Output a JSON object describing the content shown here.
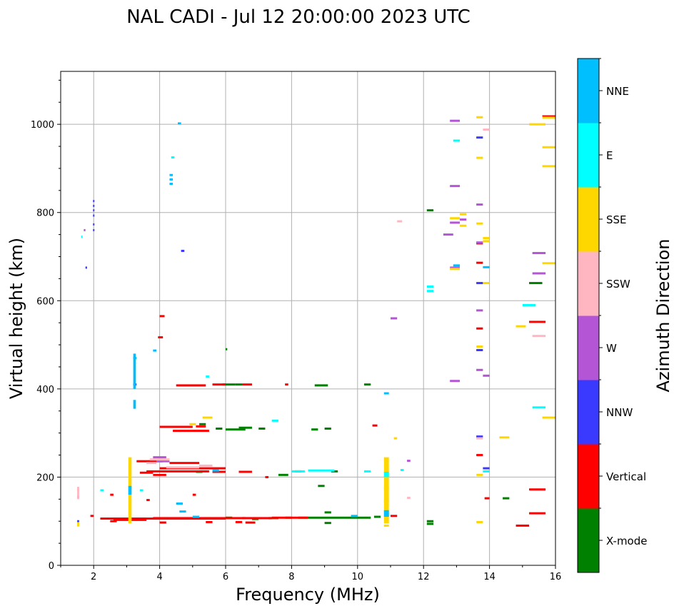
{
  "chart_data": {
    "type": "scatter",
    "title": "NAL CADI - Jul 12 20:00:00 2023 UTC",
    "xlabel": "Frequency (MHz)",
    "ylabel": "Virtual height (km)",
    "xlim": [
      1,
      16
    ],
    "ylim": [
      0,
      1120
    ],
    "xticks": [
      2,
      4,
      6,
      8,
      10,
      12,
      14,
      16
    ],
    "xtick_labels": [
      "2",
      "4",
      "6",
      "8",
      "10",
      "12",
      "14",
      "16"
    ],
    "yticks": [
      0,
      200,
      400,
      600,
      800,
      1000
    ],
    "ytick_labels": [
      "0",
      "200",
      "400",
      "600",
      "800",
      "1000"
    ],
    "grid": true,
    "colorbar": {
      "label": "Azimuth Direction",
      "categories": [
        {
          "name": "X-mode",
          "color": "#008000"
        },
        {
          "name": "Vertical",
          "color": "#ff0000"
        },
        {
          "name": "NNW",
          "color": "#3a3aff"
        },
        {
          "name": "W",
          "color": "#b455d6"
        },
        {
          "name": "SSW",
          "color": "#ffb6c1"
        },
        {
          "name": "SSE",
          "color": "#ffd700"
        },
        {
          "name": "E",
          "color": "#00ffff"
        },
        {
          "name": "NNE",
          "color": "#00bfff"
        }
      ]
    },
    "series": [
      {
        "name": "X-mode",
        "segments": [
          [
            6.0,
            6.2,
            108
          ],
          [
            6.8,
            7.0,
            105
          ],
          [
            7.3,
            7.6,
            107
          ],
          [
            7.8,
            8.0,
            108
          ],
          [
            8.2,
            10.4,
            108
          ],
          [
            10.5,
            10.7,
            110
          ],
          [
            9.0,
            9.2,
            96
          ],
          [
            9.0,
            9.2,
            120
          ],
          [
            8.8,
            9.0,
            180
          ],
          [
            8.7,
            8.9,
            408
          ],
          [
            8.9,
            9.1,
            408
          ],
          [
            9.0,
            9.2,
            310
          ],
          [
            8.6,
            8.8,
            308
          ],
          [
            7.6,
            7.9,
            205
          ],
          [
            8.1,
            8.3,
            213
          ],
          [
            9.2,
            9.4,
            213
          ],
          [
            5.7,
            5.9,
            310
          ],
          [
            6.0,
            6.6,
            308
          ],
          [
            6.4,
            6.8,
            312
          ],
          [
            7.0,
            7.2,
            310
          ],
          [
            5.2,
            5.4,
            320
          ],
          [
            5.9,
            6.3,
            410
          ],
          [
            6.3,
            6.5,
            410
          ],
          [
            10.2,
            10.4,
            410
          ],
          [
            12.1,
            12.3,
            805
          ],
          [
            12.1,
            12.3,
            100
          ],
          [
            12.1,
            12.3,
            94
          ],
          [
            14.4,
            14.6,
            152
          ],
          [
            15.2,
            15.6,
            640
          ],
          [
            6.0,
            6.05,
            490
          ],
          [
            5.1,
            5.3,
            212
          ]
        ]
      },
      {
        "name": "Vertical",
        "segments": [
          [
            1.9,
            2.0,
            112
          ],
          [
            2.2,
            6.0,
            106
          ],
          [
            2.6,
            3.6,
            103
          ],
          [
            3.8,
            6.6,
            107
          ],
          [
            6.5,
            7.4,
            107
          ],
          [
            7.4,
            7.8,
            108
          ],
          [
            7.8,
            8.5,
            108
          ],
          [
            2.5,
            2.7,
            100
          ],
          [
            4.0,
            4.2,
            97
          ],
          [
            5.4,
            5.6,
            98
          ],
          [
            6.3,
            6.5,
            98
          ],
          [
            6.6,
            6.9,
            97
          ],
          [
            3.4,
            3.8,
            210
          ],
          [
            3.6,
            5.5,
            213
          ],
          [
            4.0,
            6.0,
            220
          ],
          [
            4.3,
            5.2,
            232
          ],
          [
            5.6,
            6.0,
            212
          ],
          [
            6.4,
            6.8,
            212
          ],
          [
            3.3,
            4.1,
            236
          ],
          [
            3.8,
            4.2,
            205
          ],
          [
            4.0,
            5.0,
            314
          ],
          [
            4.4,
            5.5,
            305
          ],
          [
            5.1,
            5.4,
            315
          ],
          [
            4.5,
            5.4,
            408
          ],
          [
            5.6,
            6.0,
            410
          ],
          [
            6.5,
            6.8,
            410
          ],
          [
            7.8,
            7.9,
            410
          ],
          [
            4.0,
            4.15,
            565
          ],
          [
            3.95,
            4.1,
            517
          ],
          [
            10.45,
            10.6,
            317
          ],
          [
            13.6,
            13.8,
            730
          ],
          [
            13.6,
            13.8,
            686
          ],
          [
            13.6,
            13.8,
            537
          ],
          [
            13.6,
            13.8,
            250
          ],
          [
            13.85,
            14.0,
            152
          ],
          [
            15.2,
            15.7,
            552
          ],
          [
            15.2,
            15.7,
            172
          ],
          [
            15.2,
            15.7,
            118
          ],
          [
            14.8,
            15.2,
            90
          ],
          [
            15.6,
            16.0,
            1018
          ],
          [
            11.0,
            11.2,
            112
          ],
          [
            7.2,
            7.3,
            200
          ],
          [
            5.0,
            5.1,
            160
          ],
          [
            3.6,
            3.7,
            148
          ],
          [
            2.5,
            2.6,
            160
          ]
        ]
      },
      {
        "name": "NNW",
        "segments": [
          [
            1.98,
            2.02,
            826
          ],
          [
            1.98,
            2.02,
            815
          ],
          [
            1.98,
            2.02,
            805
          ],
          [
            1.98,
            2.02,
            793
          ],
          [
            1.98,
            2.02,
            773
          ],
          [
            1.98,
            2.02,
            760
          ],
          [
            1.75,
            1.8,
            675
          ],
          [
            4.65,
            4.75,
            713
          ],
          [
            13.6,
            13.8,
            970
          ],
          [
            13.6,
            13.8,
            640
          ],
          [
            13.6,
            13.8,
            488
          ],
          [
            13.6,
            13.8,
            292
          ],
          [
            13.8,
            14.0,
            220
          ],
          [
            1.5,
            1.56,
            100
          ],
          [
            3.2,
            3.3,
            410
          ]
        ]
      },
      {
        "name": "W",
        "segments": [
          [
            1.7,
            1.75,
            760
          ],
          [
            12.8,
            13.1,
            1008
          ],
          [
            12.8,
            13.1,
            860
          ],
          [
            12.6,
            12.9,
            750
          ],
          [
            12.8,
            13.1,
            777
          ],
          [
            13.1,
            13.3,
            784
          ],
          [
            12.8,
            13.1,
            675
          ],
          [
            11.0,
            11.2,
            560
          ],
          [
            13.6,
            13.8,
            818
          ],
          [
            13.6,
            13.8,
            732
          ],
          [
            13.6,
            13.8,
            578
          ],
          [
            13.6,
            13.8,
            443
          ],
          [
            13.8,
            14.0,
            430
          ],
          [
            12.8,
            13.1,
            418
          ],
          [
            15.3,
            15.7,
            708
          ],
          [
            15.3,
            15.7,
            662
          ],
          [
            11.5,
            11.6,
            237
          ],
          [
            3.8,
            4.2,
            245
          ],
          [
            3.9,
            4.3,
            236
          ],
          [
            1.5,
            1.56,
            155
          ]
        ]
      },
      {
        "name": "SSW",
        "segments": [
          [
            11.2,
            11.35,
            780
          ],
          [
            13.8,
            14.0,
            988
          ],
          [
            15.3,
            15.7,
            520
          ],
          [
            13.6,
            13.8,
            288
          ],
          [
            11.5,
            11.6,
            153
          ],
          [
            3.7,
            4.3,
            240
          ],
          [
            4.2,
            5.2,
            222
          ],
          [
            3.6,
            3.9,
            232
          ],
          [
            5.2,
            5.6,
            226
          ],
          [
            1.5,
            1.56,
            172
          ],
          [
            10.8,
            10.95,
            200
          ],
          [
            10.8,
            10.95,
            145
          ]
        ]
      },
      {
        "name": "SSE",
        "segments": [
          [
            12.8,
            13.1,
            787
          ],
          [
            13.1,
            13.3,
            796
          ],
          [
            13.1,
            13.3,
            770
          ],
          [
            12.8,
            13.1,
            672
          ],
          [
            13.6,
            13.8,
            1016
          ],
          [
            13.6,
            13.8,
            924
          ],
          [
            13.6,
            13.8,
            775
          ],
          [
            13.8,
            14.0,
            742
          ],
          [
            13.8,
            14.0,
            735
          ],
          [
            13.8,
            14.0,
            640
          ],
          [
            13.6,
            13.8,
            496
          ],
          [
            13.6,
            13.8,
            205
          ],
          [
            13.6,
            13.8,
            98
          ],
          [
            14.3,
            14.6,
            290
          ],
          [
            14.8,
            15.1,
            542
          ],
          [
            15.2,
            15.7,
            1000
          ],
          [
            15.6,
            16.0,
            1015
          ],
          [
            15.6,
            16.0,
            948
          ],
          [
            15.6,
            16.0,
            905
          ],
          [
            15.6,
            16.0,
            685
          ],
          [
            15.6,
            16.0,
            335
          ],
          [
            11.1,
            11.2,
            288
          ],
          [
            10.8,
            10.95,
            90
          ],
          [
            10.8,
            10.95,
            175
          ],
          [
            4.9,
            5.1,
            320
          ],
          [
            5.3,
            5.6,
            335
          ]
        ]
      },
      {
        "name": "E",
        "segments": [
          [
            1.62,
            1.66,
            745
          ],
          [
            4.35,
            4.45,
            925
          ],
          [
            12.9,
            13.1,
            963
          ],
          [
            15.0,
            15.4,
            590
          ],
          [
            15.3,
            15.7,
            358
          ],
          [
            13.8,
            14.0,
            213
          ],
          [
            11.3,
            11.4,
            216
          ],
          [
            10.2,
            10.4,
            213
          ],
          [
            12.1,
            12.3,
            632
          ],
          [
            12.1,
            12.3,
            622
          ],
          [
            5.4,
            5.5,
            428
          ],
          [
            2.2,
            2.3,
            170
          ],
          [
            3.4,
            3.5,
            170
          ],
          [
            7.4,
            7.6,
            328
          ],
          [
            8.5,
            9.3,
            215
          ],
          [
            8.0,
            8.4,
            213
          ]
        ]
      },
      {
        "name": "NNE",
        "segments": [
          [
            4.55,
            4.65,
            1002
          ],
          [
            4.3,
            4.4,
            885
          ],
          [
            4.3,
            4.4,
            875
          ],
          [
            4.3,
            4.4,
            865
          ],
          [
            3.8,
            3.9,
            487
          ],
          [
            12.9,
            13.1,
            680
          ],
          [
            13.8,
            14.0,
            676
          ],
          [
            10.8,
            10.95,
            390
          ],
          [
            9.8,
            10.0,
            112
          ],
          [
            4.5,
            4.7,
            140
          ],
          [
            5.0,
            5.2,
            110
          ],
          [
            5.6,
            5.8,
            215
          ],
          [
            4.6,
            4.8,
            122
          ],
          [
            3.2,
            3.3,
            470
          ]
        ]
      }
    ],
    "columns": [
      {
        "name": "SSE",
        "x0": 3.05,
        "x1": 3.15,
        "y0": 95,
        "y1": 245
      },
      {
        "name": "NNE",
        "x0": 3.05,
        "x1": 3.15,
        "y0": 160,
        "y1": 180
      },
      {
        "name": "SSE",
        "x0": 10.8,
        "x1": 10.95,
        "y0": 95,
        "y1": 245
      },
      {
        "name": "NNE",
        "x0": 10.8,
        "x1": 10.95,
        "y0": 110,
        "y1": 125
      },
      {
        "name": "E",
        "x0": 10.8,
        "x1": 10.95,
        "y0": 200,
        "y1": 212
      },
      {
        "name": "NNE",
        "x0": 3.2,
        "x1": 3.28,
        "y0": 355,
        "y1": 375
      },
      {
        "name": "NNE",
        "x0": 3.2,
        "x1": 3.28,
        "y0": 400,
        "y1": 480
      },
      {
        "name": "SSW",
        "x0": 1.5,
        "x1": 1.56,
        "y0": 150,
        "y1": 178
      },
      {
        "name": "SSE",
        "x0": 1.5,
        "x1": 1.56,
        "y0": 88,
        "y1": 98
      }
    ]
  }
}
